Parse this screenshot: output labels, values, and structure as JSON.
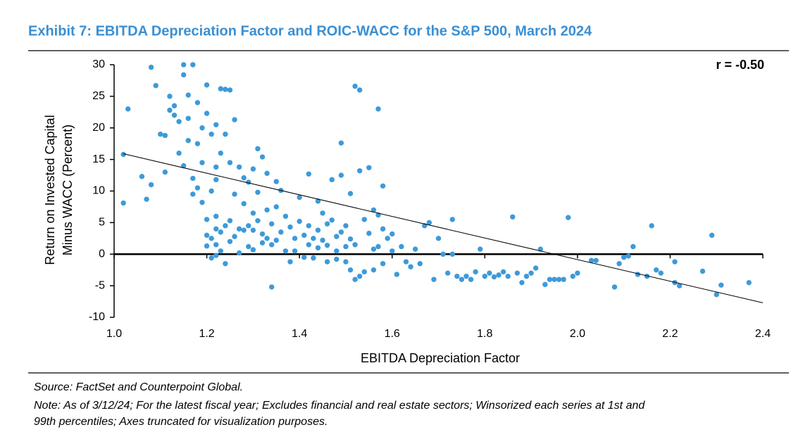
{
  "chart_data": {
    "type": "scatter",
    "title": "Exhibit 7: EBITDA Depreciation Factor and ROIC-WACC for the S&P 500, March 2024",
    "annotation": "r = -0.50",
    "xlabel": "EBITDA Depreciation Factor",
    "ylabel": [
      "Return on Invested Capital",
      "Minus WACC (Percent)"
    ],
    "xlim": [
      1.0,
      2.4
    ],
    "xticks": [
      {
        "value": 1,
        "label": "1.0"
      },
      1.2,
      1.4,
      1.6,
      1.8,
      {
        "value": 2,
        "label": "2.0"
      },
      2.2,
      2.4
    ],
    "ylim": [
      -10,
      30
    ],
    "yticks": [
      -10,
      -5,
      0,
      5,
      10,
      15,
      20,
      25,
      30
    ],
    "grid": false,
    "color": "#3d9ad9",
    "x": [
      1.02,
      1.03,
      1.02,
      1.06,
      1.07,
      1.08,
      1.08,
      1.09,
      1.1,
      1.11,
      1.11,
      1.12,
      1.12,
      1.13,
      1.13,
      1.14,
      1.14,
      1.15,
      1.15,
      1.15,
      1.16,
      1.16,
      1.16,
      1.17,
      1.17,
      1.17,
      1.18,
      1.18,
      1.18,
      1.19,
      1.19,
      1.19,
      1.2,
      1.2,
      1.2,
      1.2,
      1.2,
      1.21,
      1.21,
      1.21,
      1.21,
      1.22,
      1.22,
      1.22,
      1.22,
      1.22,
      1.22,
      1.22,
      1.23,
      1.23,
      1.23,
      1.23,
      1.24,
      1.24,
      1.24,
      1.24,
      1.25,
      1.25,
      1.25,
      1.25,
      1.26,
      1.26,
      1.26,
      1.27,
      1.27,
      1.27,
      1.28,
      1.28,
      1.28,
      1.29,
      1.29,
      1.29,
      1.3,
      1.3,
      1.3,
      1.3,
      1.31,
      1.31,
      1.31,
      1.32,
      1.32,
      1.32,
      1.33,
      1.33,
      1.33,
      1.34,
      1.34,
      1.34,
      1.35,
      1.35,
      1.35,
      1.36,
      1.36,
      1.37,
      1.37,
      1.38,
      1.38,
      1.39,
      1.39,
      1.4,
      1.4,
      1.41,
      1.41,
      1.42,
      1.42,
      1.42,
      1.43,
      1.43,
      1.44,
      1.44,
      1.44,
      1.45,
      1.45,
      1.46,
      1.46,
      1.46,
      1.47,
      1.47,
      1.48,
      1.48,
      1.48,
      1.49,
      1.49,
      1.49,
      1.5,
      1.5,
      1.5,
      1.51,
      1.51,
      1.51,
      1.52,
      1.52,
      1.52,
      1.53,
      1.53,
      1.53,
      1.54,
      1.54,
      1.55,
      1.55,
      1.56,
      1.56,
      1.56,
      1.57,
      1.57,
      1.57,
      1.58,
      1.58,
      1.58,
      1.59,
      1.6,
      1.6,
      1.61,
      1.62,
      1.63,
      1.64,
      1.65,
      1.66,
      1.67,
      1.68,
      1.69,
      1.7,
      1.71,
      1.72,
      1.73,
      1.73,
      1.74,
      1.75,
      1.76,
      1.77,
      1.78,
      1.79,
      1.8,
      1.81,
      1.82,
      1.83,
      1.84,
      1.85,
      1.86,
      1.87,
      1.88,
      1.89,
      1.9,
      1.91,
      1.92,
      1.93,
      1.94,
      1.95,
      1.96,
      1.97,
      1.98,
      1.99,
      2.0,
      2.03,
      2.04,
      2.08,
      2.09,
      2.1,
      2.11,
      2.12,
      2.13,
      2.15,
      2.16,
      2.17,
      2.18,
      2.21,
      2.21,
      2.22,
      2.27,
      2.29,
      2.3,
      2.31,
      2.37
    ],
    "series": [
      {
        "values": [
          8.1,
          23,
          15.8,
          12.3,
          8.7,
          29.6,
          11,
          26.7,
          19,
          13,
          18.8,
          22.8,
          25,
          23.5,
          22,
          21,
          16,
          28.4,
          14,
          30,
          25.2,
          21.5,
          18,
          30,
          12,
          9.5,
          24,
          17.5,
          10.5,
          20,
          14.5,
          8.2,
          26.8,
          22.3,
          5.5,
          1.3,
          3,
          19,
          10,
          2.5,
          -0.6,
          13.8,
          11.8,
          20.5,
          6,
          4,
          1.5,
          -0.2,
          16,
          26.2,
          3.5,
          0.5,
          26.1,
          19,
          4.5,
          -1.5,
          26,
          14.5,
          5.3,
          2,
          21.3,
          9.5,
          2.8,
          13.8,
          4,
          0.2,
          8,
          12.1,
          3.8,
          11.4,
          4.5,
          1.2,
          13.5,
          6.5,
          3.8,
          0.7,
          16.7,
          9.8,
          5.3,
          15.4,
          3.2,
          1.8,
          12.8,
          7,
          2.5,
          -5.2,
          4.8,
          1.5,
          11.5,
          7.5,
          2.2,
          10.1,
          3.5,
          6,
          0.5,
          4.3,
          -1.2,
          2.5,
          0.5,
          5.2,
          9,
          3,
          -0.5,
          12.7,
          4.5,
          1.5,
          2.5,
          -0.6,
          8.4,
          3.8,
          1,
          6.5,
          2.2,
          4.8,
          1.4,
          -1.2,
          11.8,
          5.4,
          2.8,
          0.5,
          -0.8,
          12.5,
          3.5,
          17.6,
          4.5,
          1.2,
          -1.2,
          9.6,
          2.4,
          -2.5,
          26.6,
          -4,
          1.5,
          26,
          13.2,
          -3.5,
          5.5,
          -2.8,
          13.7,
          3.3,
          7,
          0.8,
          -2.5,
          23,
          6.2,
          1.2,
          10.8,
          4,
          -1.5,
          2.5,
          0.5,
          3.2,
          -3.2,
          1.2,
          -1.2,
          -2,
          0.8,
          -1.5,
          4.5,
          5,
          -4,
          2.5,
          0,
          -3,
          5.5,
          0,
          -3.5,
          -4,
          -3.5,
          -4,
          -2.8,
          0.8,
          -3.5,
          -3,
          -3.6,
          -3.3,
          -2.8,
          -3.5,
          5.9,
          -3,
          -4.5,
          -3.5,
          -3,
          -2.2,
          0.8,
          -4.8,
          -4,
          -4,
          -4,
          -4,
          5.8,
          -3.5,
          -3,
          -1,
          -1,
          -5.2,
          -1.5,
          -0.5,
          -0.3,
          1.2,
          -3.2,
          -3.5,
          4.5,
          -2.5,
          -3,
          -1.2,
          -4.5,
          -5,
          -2.7,
          3,
          -6.4,
          -4.9,
          -4.5
        ]
      }
    ],
    "trendline": {
      "x": [
        1.02,
        2.4
      ],
      "y": [
        15.9,
        -7.7
      ]
    },
    "source": "Source: FactSet and Counterpoint Global.",
    "notes": [
      "Note: As of 3/12/24; For the latest fiscal year; Excludes financial and real estate sectors; Winsorized each series at 1st and",
      "99th percentiles; Axes truncated for visualization purposes."
    ]
  }
}
